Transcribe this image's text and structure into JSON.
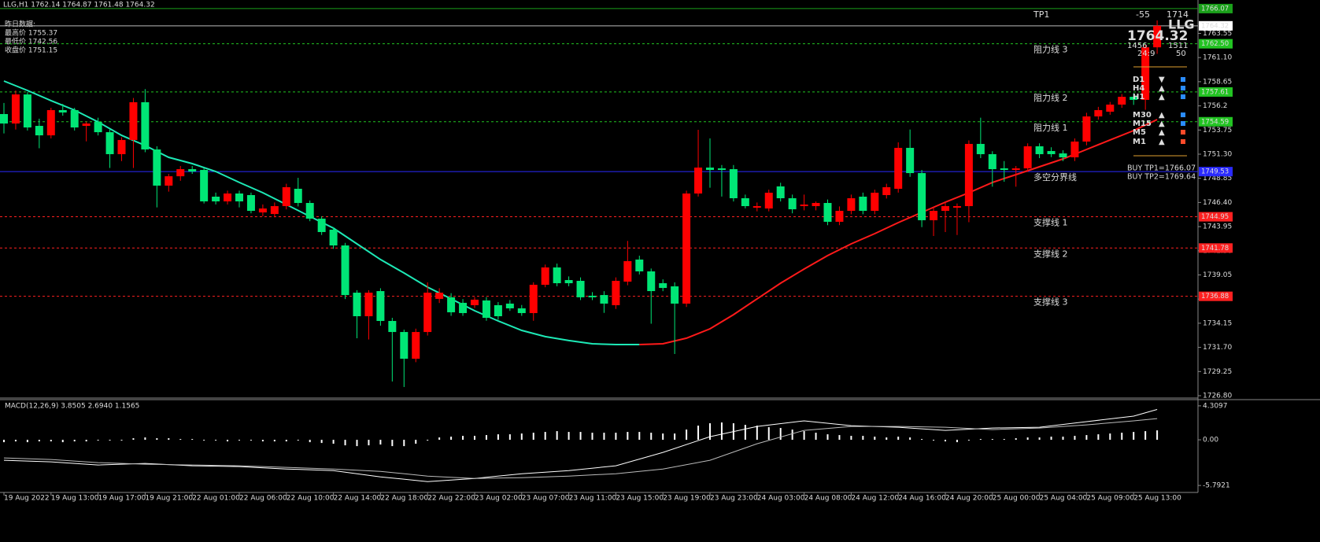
{
  "header": {
    "symbol_line": "LLG,H1  1762.14 1764.87 1761.48 1764.32",
    "yesterday": [
      "昨日数据:",
      "最高价 1755.37",
      "最低价 1742.56",
      "收盘价 1751.15"
    ]
  },
  "chart_data": [
    {
      "type": "candlestick",
      "categories": [
        "19 Aug 2022",
        null,
        null,
        null,
        "19 Aug 13:00",
        null,
        null,
        null,
        "19 Aug 17:00",
        null,
        null,
        null,
        "19 Aug 21:00",
        null,
        null,
        null,
        "22 Aug 01:00",
        null,
        null,
        null,
        "22 Aug 06:00",
        null,
        null,
        null,
        "22 Aug 10:00",
        null,
        null,
        null,
        "22 Aug 14:00",
        null,
        null,
        null,
        "22 Aug 18:00",
        null,
        null,
        null,
        "22 Aug 22:00",
        null,
        null,
        null,
        "23 Aug 02:00",
        null,
        null,
        null,
        "23 Aug 07:00",
        null,
        null,
        null,
        "23 Aug 11:00",
        null,
        null,
        null,
        "23 Aug 15:00",
        null,
        null,
        null,
        "23 Aug 19:00",
        null,
        null,
        null,
        "23 Aug 23:00",
        null,
        null,
        null,
        "24 Aug 03:00",
        null,
        null,
        null,
        "24 Aug 08:00",
        null,
        null,
        null,
        "24 Aug 12:00",
        null,
        null,
        null,
        "24 Aug 16:00",
        null,
        null,
        null,
        "24 Aug 20:00",
        null,
        null,
        null,
        "25 Aug 00:00",
        null,
        null,
        null,
        "25 Aug 04:00",
        null,
        null,
        null,
        "25 Aug 09:00",
        null,
        null,
        null,
        "25 Aug 13:00",
        null,
        null
      ],
      "open": [
        1755.37,
        1754.41,
        1757.36,
        1754.17,
        1753.21,
        1755.77,
        1755.77,
        1754.17,
        1754.57,
        1753.53,
        1751.3,
        1752.74,
        1756.57,
        1751.78,
        1748.11,
        1749.06,
        1749.78,
        1749.7,
        1746.99,
        1746.51,
        1747.31,
        1747.15,
        1745.39,
        1745.23,
        1746.03,
        1747.79,
        1746.35,
        1744.76,
        1743.64,
        1742.04,
        1737.25,
        1734.86,
        1737.41,
        1734.38,
        1733.26,
        1730.55,
        1733.26,
        1736.62,
        1736.78,
        1736.22,
        1735.98,
        1736.46,
        1735.98,
        1736.14,
        1735.66,
        1735.18,
        1738.05,
        1739.81,
        1738.53,
        1738.45,
        1736.94,
        1737.01,
        1735.98,
        1738.37,
        1740.61,
        1739.41,
        1738.21,
        1737.89,
        1736.14,
        1747.31,
        1749.94,
        1749.86,
        1749.78,
        1746.83,
        1745.87,
        1745.79,
        1748.03,
        1746.83,
        1746.03,
        1746.03,
        1746.35,
        1744.44,
        1745.55,
        1746.99,
        1745.55,
        1747.15,
        1747.79,
        1751.94,
        1749.38,
        1744.6,
        1745.55,
        1745.87,
        1746.03,
        1752.34,
        1751.3,
        1749.86,
        1749.7,
        1749.86,
        1752.1,
        1751.62,
        1751.38,
        1750.98,
        1752.58,
        1755.13,
        1755.61,
        1756.33,
        1757.12,
        1756.81,
        1762.14
      ],
      "high": [
        1756.5,
        1757.76,
        1757.6,
        1754.9,
        1756.0,
        1756.4,
        1756.0,
        1754.6,
        1755.0,
        1753.8,
        1753.0,
        1757.0,
        1757.9,
        1752.1,
        1749.3,
        1750.1,
        1750.1,
        1749.9,
        1747.4,
        1747.6,
        1747.6,
        1747.4,
        1746.2,
        1746.4,
        1748.3,
        1748.9,
        1746.6,
        1745.0,
        1743.9,
        1742.3,
        1737.5,
        1737.5,
        1737.7,
        1734.7,
        1733.5,
        1733.6,
        1738.3,
        1737.7,
        1737.2,
        1736.6,
        1736.8,
        1736.8,
        1736.3,
        1736.5,
        1736.0,
        1738.3,
        1740.1,
        1740.2,
        1738.9,
        1738.8,
        1737.3,
        1737.4,
        1738.8,
        1742.5,
        1741.0,
        1739.7,
        1738.6,
        1738.3,
        1747.6,
        1753.77,
        1752.9,
        1750.2,
        1750.2,
        1747.2,
        1746.4,
        1747.7,
        1748.4,
        1747.2,
        1747.2,
        1746.5,
        1746.7,
        1746.0,
        1747.2,
        1747.4,
        1747.7,
        1748.3,
        1752.5,
        1753.8,
        1749.7,
        1745.9,
        1746.4,
        1746.3,
        1752.7,
        1755.0,
        1751.6,
        1750.6,
        1750.1,
        1752.4,
        1752.4,
        1752.0,
        1751.7,
        1752.9,
        1755.5,
        1756.1,
        1756.6,
        1757.4,
        1757.5,
        1762.4,
        1764.87
      ],
      "low": [
        1753.4,
        1753.8,
        1753.7,
        1751.9,
        1752.9,
        1755.2,
        1753.7,
        1752.6,
        1753.2,
        1749.9,
        1750.6,
        1749.9,
        1751.5,
        1745.9,
        1747.5,
        1748.6,
        1749.3,
        1746.3,
        1746.2,
        1746.2,
        1745.9,
        1745.3,
        1745.0,
        1744.9,
        1745.7,
        1746.0,
        1744.5,
        1743.1,
        1741.7,
        1736.6,
        1732.63,
        1732.5,
        1733.9,
        1728.24,
        1727.68,
        1730.2,
        1732.9,
        1736.2,
        1734.9,
        1734.9,
        1735.7,
        1734.4,
        1734.5,
        1735.4,
        1734.9,
        1734.4,
        1737.8,
        1737.9,
        1737.9,
        1736.5,
        1736.5,
        1735.2,
        1735.6,
        1738.0,
        1739.1,
        1734.1,
        1737.4,
        1731.03,
        1735.8,
        1747.0,
        1747.9,
        1747.0,
        1746.5,
        1745.8,
        1745.5,
        1745.5,
        1746.5,
        1745.3,
        1745.6,
        1745.6,
        1744.1,
        1744.1,
        1745.2,
        1745.2,
        1745.2,
        1746.8,
        1747.4,
        1749.0,
        1743.9,
        1743.0,
        1743.4,
        1743.1,
        1744.4,
        1750.9,
        1748.0,
        1748.5,
        1748.0,
        1749.5,
        1750.9,
        1751.0,
        1750.6,
        1750.6,
        1752.2,
        1754.8,
        1755.3,
        1756.0,
        1756.3,
        1755.8,
        1761.48
      ],
      "close": [
        1754.41,
        1757.36,
        1754.01,
        1753.21,
        1755.77,
        1755.53,
        1754.01,
        1754.41,
        1753.53,
        1751.3,
        1752.74,
        1756.57,
        1751.78,
        1748.11,
        1749.06,
        1749.78,
        1749.54,
        1746.51,
        1746.51,
        1747.31,
        1746.51,
        1745.55,
        1745.79,
        1746.03,
        1747.95,
        1746.35,
        1744.76,
        1743.4,
        1742.04,
        1737.01,
        1734.86,
        1737.25,
        1734.38,
        1733.26,
        1730.55,
        1733.26,
        1737.25,
        1737.25,
        1735.26,
        1735.18,
        1736.54,
        1734.7,
        1734.86,
        1735.66,
        1735.18,
        1738.05,
        1739.81,
        1738.21,
        1738.21,
        1736.78,
        1736.78,
        1736.14,
        1738.45,
        1740.45,
        1739.41,
        1737.41,
        1737.73,
        1736.14,
        1747.31,
        1749.94,
        1749.7,
        1749.7,
        1746.83,
        1746.03,
        1746.03,
        1747.39,
        1746.83,
        1745.71,
        1746.19,
        1746.35,
        1744.44,
        1745.55,
        1746.83,
        1745.55,
        1747.39,
        1747.95,
        1751.94,
        1749.38,
        1744.6,
        1745.55,
        1746.03,
        1746.03,
        1752.34,
        1751.3,
        1749.78,
        1749.7,
        1749.86,
        1752.1,
        1751.3,
        1751.3,
        1750.98,
        1752.58,
        1755.13,
        1755.77,
        1756.33,
        1757.12,
        1756.81,
        1762.14,
        1764.32
      ],
      "up_color": "#ff0000",
      "down_color": "#00e676",
      "ylim": [
        1726.64,
        1766.94
      ],
      "yticks": [
        1763.55,
        {
          "value": 1761.1,
          "label": "1761.10"
        },
        1758.65,
        1756.2,
        {
          "value": 1753.75,
          "label": "1753.75"
        },
        {
          "value": 1751.3,
          "label": "1751.30"
        },
        1748.85,
        {
          "value": 1746.4,
          "label": "1746.40"
        },
        1743.95,
        {
          "value": 1741.5,
          "label": "1741.50"
        },
        1739.05,
        {
          "value": 1736.6,
          "label": "1736.60"
        },
        1734.15,
        {
          "value": 1731.7,
          "label": "1731.70"
        },
        1729.25,
        {
          "value": 1726.8,
          "label": "1726.80"
        }
      ],
      "ma": {
        "x": [
          0,
          2,
          4,
          6,
          8,
          10,
          12,
          14,
          16,
          18,
          20,
          22,
          24,
          26,
          28,
          30,
          32,
          34,
          36,
          38,
          40,
          42,
          44,
          46,
          48,
          50,
          52,
          54,
          56,
          58,
          60,
          62,
          64,
          66,
          68,
          70,
          72,
          74,
          76,
          78,
          80,
          82,
          84,
          86,
          88,
          90,
          92,
          94,
          96,
          98
        ],
        "values": [
          1758.72,
          1757.76,
          1756.73,
          1755.77,
          1754.57,
          1753.21,
          1752.18,
          1750.98,
          1750.34,
          1749.54,
          1748.43,
          1747.39,
          1746.19,
          1744.99,
          1743.8,
          1742.2,
          1740.61,
          1739.25,
          1737.81,
          1736.62,
          1735.42,
          1734.38,
          1733.42,
          1732.79,
          1732.39,
          1732.07,
          1731.99,
          1731.99,
          1732.07,
          1732.63,
          1733.58,
          1735.02,
          1736.62,
          1738.21,
          1739.65,
          1741.01,
          1742.2,
          1743.24,
          1744.36,
          1745.39,
          1746.43,
          1747.39,
          1748.43,
          1749.22,
          1750.02,
          1750.82,
          1751.78,
          1752.74,
          1753.69,
          1754.81
        ],
        "down_color": "#1de9b6",
        "up_color": "#ff1a1a"
      },
      "current_price": {
        "value": 1764.32,
        "tag": "1764.32"
      },
      "levels": [
        {
          "name": "TP1",
          "value": 1766.07,
          "tag": "1766.07",
          "color": "#1aa01a",
          "style": "solid"
        },
        {
          "name": "阻力线 3",
          "value": 1762.5,
          "tag": "1762.50",
          "color": "#22c422",
          "style": "dashed"
        },
        {
          "name": "阻力线 2",
          "value": 1757.61,
          "tag": "1757.61",
          "color": "#22c422",
          "style": "dashed"
        },
        {
          "name": "阻力线 1",
          "value": 1754.59,
          "tag": "1754.59",
          "color": "#22c422",
          "style": "dashed"
        },
        {
          "name": "多空分界线",
          "value": 1749.53,
          "tag": "1749.53",
          "color": "#2a2aff",
          "style": "solid"
        },
        {
          "name": "支撑线 1",
          "value": 1744.95,
          "tag": "1744.95",
          "color": "#ff2020",
          "style": "dashed"
        },
        {
          "name": "支撑线 2",
          "value": 1741.78,
          "tag": "1741.78",
          "color": "#ff2020",
          "style": "dashed"
        },
        {
          "name": "支撑线 3",
          "value": 1736.88,
          "tag": "1736.88",
          "color": "#ff2020",
          "style": "dashed"
        }
      ]
    },
    {
      "type": "macd",
      "title": "MACD(12,26,9) 3.8505 2.6940 1.1565",
      "histogram": [
        -0.3,
        -0.2,
        -0.3,
        -0.2,
        -0.2,
        -0.3,
        -0.2,
        -0.2,
        -0.1,
        -0.1,
        -0.1,
        0.2,
        0.3,
        0.2,
        0.2,
        0.1,
        0.1,
        0.0,
        -0.1,
        -0.2,
        -0.1,
        -0.1,
        -0.2,
        -0.2,
        -0.2,
        -0.1,
        -0.3,
        -0.4,
        -0.5,
        -0.7,
        -0.8,
        -0.7,
        -0.6,
        -0.8,
        -0.8,
        -0.5,
        -0.1,
        0.3,
        0.4,
        0.5,
        0.5,
        0.6,
        0.7,
        0.7,
        0.8,
        0.9,
        1.0,
        1.1,
        1.0,
        1.0,
        0.9,
        0.9,
        0.9,
        1.0,
        1.0,
        0.9,
        0.8,
        0.8,
        1.3,
        1.8,
        2.1,
        2.2,
        2.1,
        1.9,
        1.8,
        1.6,
        1.5,
        1.3,
        1.1,
        0.9,
        0.7,
        0.6,
        0.5,
        0.5,
        0.4,
        0.3,
        0.4,
        0.3,
        0.1,
        -0.1,
        -0.2,
        -0.3,
        0.0,
        0.1,
        0.1,
        0.1,
        0.2,
        0.3,
        0.3,
        0.4,
        0.4,
        0.5,
        0.6,
        0.7,
        0.8,
        0.9,
        1.0,
        1.1,
        1.2
      ],
      "lines_x": [
        0,
        4,
        8,
        12,
        16,
        20,
        24,
        28,
        32,
        36,
        40,
        44,
        48,
        52,
        56,
        60,
        64,
        68,
        72,
        76,
        80,
        84,
        88,
        92,
        96,
        98
      ],
      "main": [
        -2.6,
        -2.8,
        -3.2,
        -3.0,
        -3.3,
        -3.4,
        -3.7,
        -3.9,
        -4.7,
        -5.3,
        -4.9,
        -4.3,
        -3.9,
        -3.3,
        -1.6,
        0.4,
        1.7,
        2.4,
        1.8,
        1.6,
        1.2,
        1.5,
        1.6,
        2.3,
        3.0,
        3.85
      ],
      "signal": [
        -2.3,
        -2.5,
        -2.9,
        -3.1,
        -3.2,
        -3.3,
        -3.5,
        -3.7,
        -4.0,
        -4.6,
        -4.9,
        -4.8,
        -4.6,
        -4.3,
        -3.7,
        -2.6,
        -0.5,
        1.2,
        1.7,
        1.7,
        1.6,
        1.3,
        1.5,
        1.9,
        2.4,
        2.69
      ],
      "color": "#ffffff",
      "ylim": [
        -6.58,
        5.0
      ],
      "yticks": [
        4.3097,
        {
          "value": 0,
          "label": "0.00"
        },
        -5.7921
      ]
    }
  ],
  "panel": {
    "delta": "-55",
    "count": "1714",
    "symbol": "LLG",
    "price": "1764.32",
    "left": "1456",
    "right": "1511",
    "timer": "24:9",
    "spread": "50",
    "signals": [
      {
        "tf": "D1",
        "arrow": "▼",
        "tf_color": "#2a8cff",
        "arrow_color": "#ff4a2a",
        "square_color": "#2a8cff"
      },
      {
        "tf": "H4",
        "arrow": "▲",
        "tf_color": "#2a8cff",
        "arrow_color": "#2a8cff",
        "square_color": "#2a8cff"
      },
      {
        "tf": "H1",
        "arrow": "▲",
        "tf_color": "#2a8cff",
        "arrow_color": "#2a8cff",
        "square_color": "#2a8cff"
      },
      {
        "tf": "M30",
        "arrow": "▲",
        "tf_color": "#2a8cff",
        "arrow_color": "#2a8cff",
        "square_color": "#2a8cff"
      },
      {
        "tf": "M15",
        "arrow": "▲",
        "tf_color": "#2a8cff",
        "arrow_color": "#2a8cff",
        "square_color": "#2a8cff"
      },
      {
        "tf": "M5",
        "arrow": "▲",
        "tf_color": "#2a8cff",
        "arrow_color": "#2a8cff",
        "square_color": "#ff4a2a"
      },
      {
        "tf": "M1",
        "arrow": "▲",
        "tf_color": "#ff4a2a",
        "arrow_color": "#2a8cff",
        "square_color": "#ff4a2a"
      }
    ],
    "buy": [
      "BUY TP1=1766.07",
      "BUY TP2=1769.64"
    ]
  }
}
